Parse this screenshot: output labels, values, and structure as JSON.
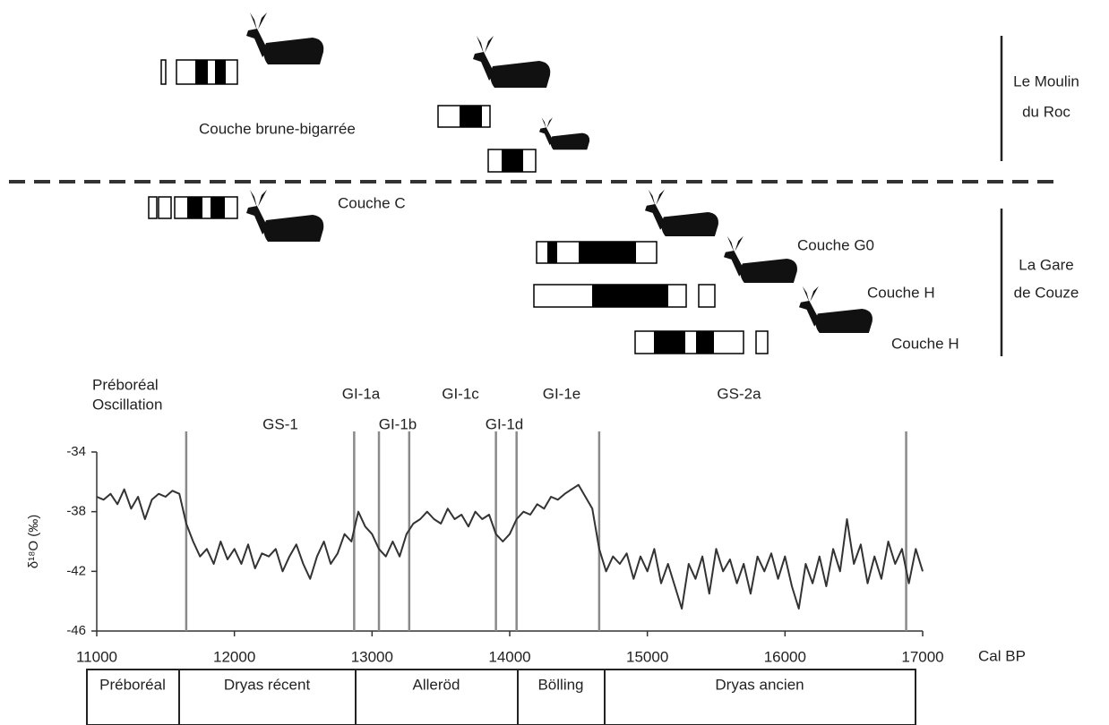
{
  "chart_data": {
    "type": "line",
    "y_label": "δ¹⁸O (‰)",
    "x_label": "Cal BP",
    "xlim": [
      11000,
      17000
    ],
    "xticks": [
      11000,
      12000,
      13000,
      14000,
      15000,
      16000,
      17000
    ],
    "ylim": [
      -46,
      -34
    ],
    "yticks": [
      -34,
      -38,
      -42,
      -46
    ],
    "x": [
      11000,
      11050,
      11100,
      11150,
      11200,
      11250,
      11300,
      11350,
      11400,
      11450,
      11500,
      11550,
      11600,
      11650,
      11700,
      11750,
      11800,
      11850,
      11900,
      11950,
      12000,
      12050,
      12100,
      12150,
      12200,
      12250,
      12300,
      12350,
      12400,
      12450,
      12500,
      12550,
      12600,
      12650,
      12700,
      12750,
      12800,
      12850,
      12900,
      12950,
      13000,
      13050,
      13100,
      13150,
      13200,
      13250,
      13300,
      13350,
      13400,
      13450,
      13500,
      13550,
      13600,
      13650,
      13700,
      13750,
      13800,
      13850,
      13900,
      13950,
      14000,
      14050,
      14100,
      14150,
      14200,
      14250,
      14300,
      14350,
      14400,
      14450,
      14500,
      14550,
      14600,
      14650,
      14700,
      14750,
      14800,
      14850,
      14900,
      14950,
      15000,
      15050,
      15100,
      15150,
      15200,
      15250,
      15300,
      15350,
      15400,
      15450,
      15500,
      15550,
      15600,
      15650,
      15700,
      15750,
      15800,
      15850,
      15900,
      15950,
      16000,
      16050,
      16100,
      16150,
      16200,
      16250,
      16300,
      16350,
      16400,
      16450,
      16500,
      16550,
      16600,
      16650,
      16700,
      16750,
      16800,
      16850,
      16900,
      16950,
      17000
    ],
    "series": [
      {
        "color": "#333333",
        "values": [
          -37,
          -37.2,
          -36.8,
          -37.5,
          -36.5,
          -37.8,
          -37,
          -38.5,
          -37.2,
          -36.8,
          -37,
          -36.6,
          -36.8,
          -38.8,
          -40,
          -41,
          -40.5,
          -41.5,
          -40,
          -41.2,
          -40.5,
          -41.5,
          -40.2,
          -41.8,
          -40.8,
          -41,
          -40.5,
          -42,
          -41,
          -40.2,
          -41.5,
          -42.5,
          -41,
          -40,
          -41.5,
          -40.8,
          -39.5,
          -40,
          -38,
          -39,
          -39.5,
          -40.5,
          -41,
          -40,
          -41,
          -39.5,
          -38.8,
          -38.5,
          -38,
          -38.5,
          -38.8,
          -37.8,
          -38.5,
          -38.2,
          -39,
          -38,
          -38.5,
          -38.2,
          -39.5,
          -40,
          -39.5,
          -38.5,
          -38,
          -38.2,
          -37.5,
          -37.8,
          -37,
          -37.2,
          -36.8,
          -36.5,
          -36.2,
          -37,
          -37.8,
          -40.5,
          -42,
          -41,
          -41.5,
          -40.8,
          -42.5,
          -41,
          -42,
          -40.5,
          -42.8,
          -41.5,
          -43,
          -44.5,
          -41.5,
          -42.5,
          -41,
          -43.5,
          -40.5,
          -42,
          -41.2,
          -42.8,
          -41.5,
          -43.5,
          -41,
          -42,
          -40.8,
          -42.5,
          -41,
          -43,
          -44.5,
          -41.5,
          -42.8,
          -41,
          -43,
          -40.5,
          -42,
          -38.5,
          -41.5,
          -40.2,
          -42.8,
          -41,
          -42.5,
          -40,
          -41.5,
          -40.5,
          -42.8,
          -40.5,
          -42
        ]
      }
    ],
    "boundaries": [
      11650,
      12870,
      13050,
      13270,
      13900,
      14050,
      14650,
      16880
    ],
    "boundary_color": "#8a8a8a",
    "events": [
      [
        "Préboréal",
        "Oscillation"
      ],
      [
        "GS-1"
      ],
      [
        "GI-1a"
      ],
      [
        "GI-1b"
      ],
      [
        "GI-1c"
      ],
      [
        "GI-1d"
      ],
      [
        "GI-1e"
      ],
      [
        "GS-2a"
      ]
    ],
    "chronozones": [
      "Préboréal",
      "Dryas récent",
      "Alleröd",
      "Bölling",
      "Dryas ancien"
    ]
  },
  "sites": [
    {
      "name": [
        "Le Moulin",
        "du Roc"
      ],
      "layers": [
        "Couche brune-bigarrée"
      ]
    },
    {
      "name": [
        "La Gare",
        "de Couze"
      ],
      "layers": [
        "Couche C",
        "Couche G0",
        "Couche H",
        "Couche H"
      ]
    }
  ]
}
